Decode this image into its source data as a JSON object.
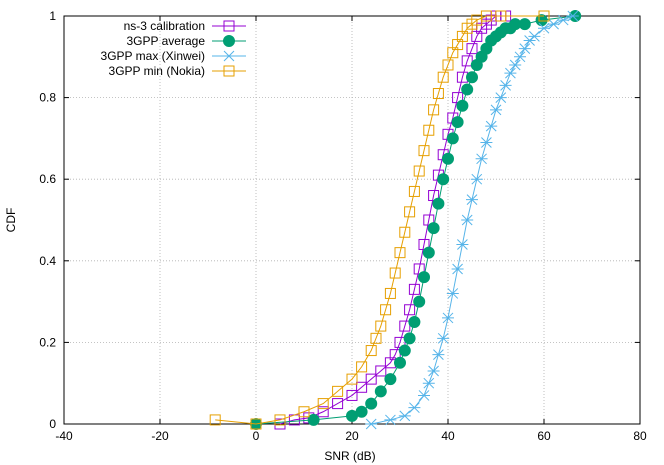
{
  "chart_data": {
    "type": "scatter",
    "title": "",
    "xlabel": "SNR (dB)",
    "ylabel": "CDF",
    "xlim": [
      -40,
      80
    ],
    "ylim": [
      0,
      1
    ],
    "xticks": [
      -40,
      -20,
      0,
      20,
      40,
      60,
      80
    ],
    "yticks": [
      0,
      0.2,
      0.4,
      0.6,
      0.8,
      1
    ],
    "xtick_labels": [
      "-40",
      "-20",
      "0",
      "20",
      "40",
      "60",
      "80"
    ],
    "ytick_labels": [
      "0",
      "0.2",
      "0.4",
      "0.6",
      "0.8",
      "1"
    ],
    "grid": true,
    "legend_position": "top-left",
    "series": [
      {
        "name": "ns-3 calibration",
        "color": "#9400d3",
        "marker": "open-square",
        "x": [
          5,
          8,
          11,
          14,
          17,
          20,
          22,
          24,
          26,
          28,
          29,
          30,
          31,
          32,
          33,
          34,
          35,
          36,
          37,
          38,
          39,
          40,
          41,
          42,
          43,
          44,
          45,
          46,
          47,
          48,
          49,
          50,
          51,
          52
        ],
        "y": [
          0,
          0.01,
          0.015,
          0.03,
          0.05,
          0.07,
          0.09,
          0.11,
          0.13,
          0.15,
          0.17,
          0.2,
          0.24,
          0.28,
          0.33,
          0.38,
          0.44,
          0.5,
          0.56,
          0.61,
          0.66,
          0.71,
          0.75,
          0.8,
          0.85,
          0.89,
          0.92,
          0.95,
          0.97,
          0.98,
          0.99,
          1.0,
          1.0,
          1.0
        ]
      },
      {
        "name": "3GPP average",
        "color": "#009e73",
        "marker": "filled-circle",
        "x": [
          0,
          12,
          20,
          22,
          24,
          26,
          28,
          30,
          31,
          32,
          33,
          34,
          35,
          36,
          37,
          38,
          39,
          40,
          41,
          42,
          43,
          44,
          45,
          46,
          47,
          48,
          49,
          50,
          51,
          52,
          53,
          54,
          56,
          59.5,
          66.5
        ],
        "y": [
          0,
          0.01,
          0.02,
          0.03,
          0.05,
          0.08,
          0.11,
          0.15,
          0.18,
          0.21,
          0.25,
          0.3,
          0.36,
          0.42,
          0.48,
          0.54,
          0.6,
          0.65,
          0.7,
          0.74,
          0.78,
          0.82,
          0.85,
          0.88,
          0.9,
          0.92,
          0.94,
          0.95,
          0.96,
          0.97,
          0.97,
          0.98,
          0.98,
          0.99,
          1.0
        ]
      },
      {
        "name": "3GPP max (Xinwei)",
        "color": "#56b4e9",
        "marker": "cross",
        "x": [
          24,
          28,
          31,
          33,
          35,
          36,
          37,
          38,
          39,
          40,
          41,
          42,
          43,
          44,
          45,
          46,
          47,
          48,
          49,
          50,
          51,
          52,
          53,
          54,
          55,
          56,
          57,
          58,
          60,
          62,
          64,
          66
        ],
        "y": [
          0,
          0.01,
          0.02,
          0.04,
          0.07,
          0.1,
          0.13,
          0.17,
          0.21,
          0.26,
          0.32,
          0.38,
          0.44,
          0.5,
          0.55,
          0.6,
          0.65,
          0.69,
          0.73,
          0.77,
          0.8,
          0.83,
          0.86,
          0.88,
          0.9,
          0.92,
          0.94,
          0.95,
          0.97,
          0.98,
          0.99,
          1.0
        ]
      },
      {
        "name": "3GPP min (Nokia)",
        "color": "#e69f00",
        "marker": "open-square",
        "x": [
          -8.5,
          0,
          5,
          10,
          14,
          17,
          20,
          22,
          24,
          25,
          26,
          27,
          28,
          29,
          30,
          31,
          32,
          33,
          34,
          35,
          36,
          37,
          38,
          39,
          40,
          41,
          42,
          43,
          44,
          45,
          46,
          48,
          51,
          60
        ],
        "y": [
          0.01,
          0.0,
          0.01,
          0.03,
          0.05,
          0.08,
          0.11,
          0.14,
          0.18,
          0.21,
          0.24,
          0.28,
          0.32,
          0.37,
          0.42,
          0.47,
          0.52,
          0.57,
          0.62,
          0.67,
          0.72,
          0.77,
          0.81,
          0.85,
          0.88,
          0.91,
          0.93,
          0.95,
          0.97,
          0.98,
          0.99,
          1.0,
          1.0,
          1.0
        ]
      }
    ]
  }
}
